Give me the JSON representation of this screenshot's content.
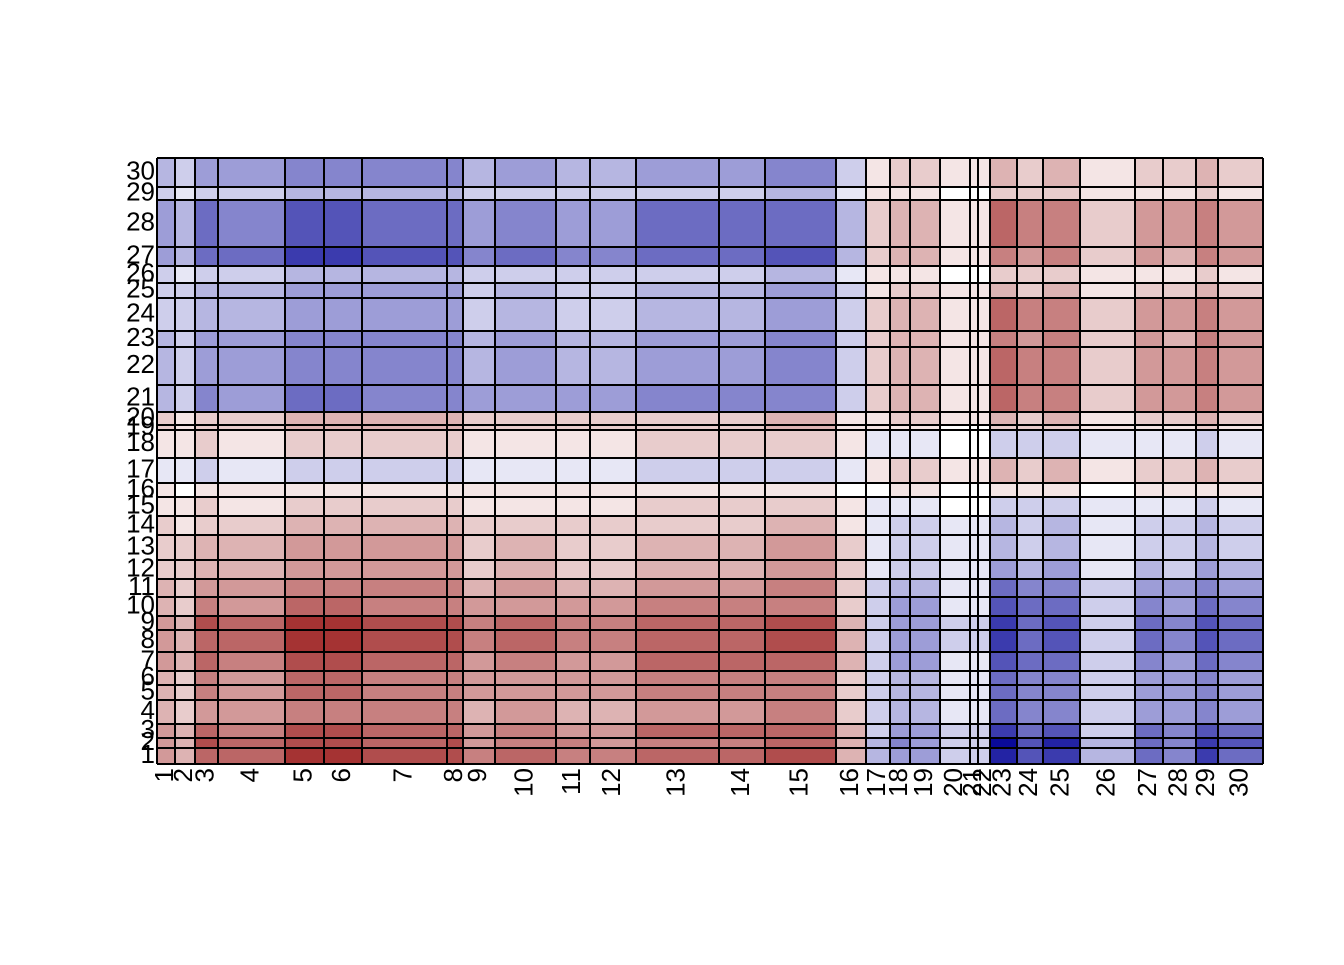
{
  "chart_data": {
    "type": "heatmap",
    "x_categories": [
      "1",
      "2",
      "3",
      "4",
      "5",
      "6",
      "7",
      "8",
      "9",
      "10",
      "11",
      "12",
      "13",
      "14",
      "15",
      "16",
      "17",
      "18",
      "19",
      "20",
      "21",
      "22",
      "23",
      "24",
      "25",
      "26",
      "27",
      "28",
      "29",
      "30"
    ],
    "y_categories": [
      "1",
      "2",
      "3",
      "4",
      "5",
      "6",
      "7",
      "8",
      "9",
      "10",
      "11",
      "12",
      "13",
      "14",
      "15",
      "16",
      "17",
      "18",
      "19",
      "20",
      "21",
      "22",
      "23",
      "24",
      "25",
      "26",
      "27",
      "28",
      "29",
      "30"
    ],
    "xbreaks": [
      0,
      18,
      38,
      61,
      128,
      167,
      205,
      290,
      306,
      338,
      399,
      433,
      479,
      562,
      608,
      679,
      709,
      733,
      753,
      783,
      813,
      821,
      833,
      860,
      886,
      923,
      978,
      1006,
      1039,
      1061,
      1106
    ],
    "ybreaks": [
      0,
      16,
      26,
      40,
      64,
      79,
      93,
      112,
      134,
      148,
      167,
      185,
      204,
      229,
      248,
      267,
      281,
      306,
      334,
      339,
      352,
      379,
      417,
      433,
      466,
      481,
      498,
      517,
      564,
      577,
      606
    ],
    "vlim": [
      -1,
      1
    ],
    "colorscale": [
      "#0a0a9a",
      "#ffffff",
      "#8e0000"
    ],
    "values": [
      [
        0.4,
        0.3,
        0.6,
        0.6,
        0.8,
        0.8,
        0.7,
        0.7,
        0.5,
        0.6,
        0.5,
        0.5,
        0.6,
        0.6,
        0.7,
        0.3,
        -0.3,
        -0.4,
        -0.4,
        -0.2,
        -0.2,
        -0.2,
        -0.9,
        -0.7,
        -0.8,
        -0.3,
        -0.6,
        -0.5,
        -0.8,
        -0.6
      ],
      [
        0.4,
        0.3,
        0.7,
        0.6,
        0.7,
        0.7,
        0.6,
        0.7,
        0.4,
        0.5,
        0.5,
        0.4,
        0.5,
        0.5,
        0.6,
        0.3,
        -0.3,
        -0.5,
        -0.4,
        -0.2,
        -0.2,
        -0.2,
        -1,
        -0.7,
        -0.9,
        -0.3,
        -0.6,
        -0.5,
        -0.8,
        -0.7
      ],
      [
        0.4,
        0.3,
        0.6,
        0.5,
        0.7,
        0.7,
        0.6,
        0.6,
        0.4,
        0.5,
        0.4,
        0.4,
        0.6,
        0.6,
        0.6,
        0.3,
        -0.2,
        -0.4,
        -0.4,
        -0.2,
        -0.2,
        -0.2,
        -0.8,
        -0.6,
        -0.7,
        -0.2,
        -0.6,
        -0.5,
        -0.7,
        -0.6
      ],
      [
        0.3,
        0.2,
        0.4,
        0.4,
        0.5,
        0.5,
        0.5,
        0.5,
        0.3,
        0.4,
        0.3,
        0.3,
        0.4,
        0.4,
        0.5,
        0.2,
        -0.2,
        -0.3,
        -0.3,
        -0.1,
        -0.1,
        -0.1,
        -0.6,
        -0.5,
        -0.5,
        -0.2,
        -0.4,
        -0.4,
        -0.5,
        -0.4
      ],
      [
        0.3,
        0.2,
        0.5,
        0.4,
        0.6,
        0.6,
        0.5,
        0.5,
        0.4,
        0.4,
        0.4,
        0.4,
        0.5,
        0.5,
        0.5,
        0.2,
        -0.2,
        -0.3,
        -0.3,
        -0.1,
        -0.1,
        -0.1,
        -0.6,
        -0.5,
        -0.5,
        -0.2,
        -0.4,
        -0.4,
        -0.5,
        -0.4
      ],
      [
        0.3,
        0.2,
        0.5,
        0.4,
        0.6,
        0.6,
        0.5,
        0.5,
        0.4,
        0.4,
        0.4,
        0.4,
        0.5,
        0.5,
        0.5,
        0.2,
        -0.2,
        -0.3,
        -0.3,
        -0.1,
        -0.1,
        -0.1,
        -0.6,
        -0.5,
        -0.5,
        -0.2,
        -0.4,
        -0.4,
        -0.5,
        -0.4
      ],
      [
        0.4,
        0.3,
        0.6,
        0.5,
        0.7,
        0.7,
        0.6,
        0.6,
        0.4,
        0.5,
        0.4,
        0.4,
        0.6,
        0.6,
        0.6,
        0.3,
        -0.2,
        -0.4,
        -0.4,
        -0.1,
        -0.1,
        -0.1,
        -0.7,
        -0.6,
        -0.6,
        -0.2,
        -0.5,
        -0.4,
        -0.6,
        -0.5
      ],
      [
        0.4,
        0.3,
        0.6,
        0.6,
        0.8,
        0.8,
        0.7,
        0.7,
        0.5,
        0.6,
        0.5,
        0.5,
        0.6,
        0.6,
        0.7,
        0.3,
        -0.2,
        -0.4,
        -0.4,
        -0.2,
        -0.2,
        -0.2,
        -0.8,
        -0.6,
        -0.7,
        -0.2,
        -0.6,
        -0.5,
        -0.7,
        -0.6
      ],
      [
        0.4,
        0.3,
        0.7,
        0.6,
        0.8,
        0.8,
        0.7,
        0.7,
        0.5,
        0.6,
        0.5,
        0.5,
        0.6,
        0.6,
        0.7,
        0.3,
        -0.2,
        -0.4,
        -0.4,
        -0.2,
        -0.2,
        -0.2,
        -0.8,
        -0.6,
        -0.7,
        -0.2,
        -0.6,
        -0.5,
        -0.7,
        -0.6
      ],
      [
        0.3,
        0.2,
        0.5,
        0.4,
        0.6,
        0.6,
        0.5,
        0.5,
        0.4,
        0.4,
        0.4,
        0.4,
        0.5,
        0.5,
        0.5,
        0.2,
        -0.2,
        -0.4,
        -0.4,
        -0.1,
        -0.1,
        -0.1,
        -0.7,
        -0.6,
        -0.6,
        -0.2,
        -0.5,
        -0.4,
        -0.6,
        -0.5
      ],
      [
        0.3,
        0.2,
        0.4,
        0.4,
        0.5,
        0.5,
        0.5,
        0.5,
        0.3,
        0.4,
        0.3,
        0.3,
        0.4,
        0.4,
        0.5,
        0.2,
        -0.2,
        -0.3,
        -0.3,
        -0.1,
        -0.1,
        -0.1,
        -0.6,
        -0.5,
        -0.5,
        -0.2,
        -0.4,
        -0.4,
        -0.5,
        -0.4
      ],
      [
        0.2,
        0.2,
        0.3,
        0.3,
        0.4,
        0.4,
        0.4,
        0.4,
        0.2,
        0.3,
        0.2,
        0.2,
        0.3,
        0.3,
        0.4,
        0.2,
        -0.1,
        -0.2,
        -0.2,
        -0.1,
        -0.1,
        -0.1,
        -0.4,
        -0.3,
        -0.4,
        -0.1,
        -0.3,
        -0.2,
        -0.4,
        -0.3
      ],
      [
        0.2,
        0.2,
        0.3,
        0.3,
        0.4,
        0.4,
        0.4,
        0.4,
        0.2,
        0.3,
        0.2,
        0.2,
        0.3,
        0.3,
        0.4,
        0.2,
        -0.1,
        -0.2,
        -0.2,
        -0.1,
        -0.1,
        -0.1,
        -0.3,
        -0.2,
        -0.3,
        -0.1,
        -0.2,
        -0.2,
        -0.3,
        -0.2
      ],
      [
        0.2,
        0.1,
        0.2,
        0.2,
        0.3,
        0.3,
        0.3,
        0.3,
        0.2,
        0.2,
        0.2,
        0.2,
        0.2,
        0.2,
        0.3,
        0.1,
        -0.1,
        -0.2,
        -0.2,
        -0.1,
        -0.1,
        -0.1,
        -0.3,
        -0.2,
        -0.3,
        -0.1,
        -0.2,
        -0.2,
        -0.3,
        -0.2
      ],
      [
        0.1,
        0.1,
        0.2,
        0.1,
        0.2,
        0.2,
        0.2,
        0.2,
        0.1,
        0.1,
        0.1,
        0.1,
        0.2,
        0.2,
        0.2,
        0.1,
        -0.1,
        -0.1,
        -0.1,
        0,
        0,
        0,
        -0.2,
        -0.2,
        -0.2,
        -0.1,
        -0.1,
        -0.1,
        -0.2,
        -0.1
      ],
      [
        0.1,
        0,
        0.1,
        0.1,
        0.1,
        0.1,
        0.1,
        0.1,
        0.1,
        0.1,
        0.1,
        0.1,
        0.1,
        0.1,
        0.1,
        0,
        0,
        0.1,
        0.1,
        0,
        0,
        0,
        0.1,
        0.1,
        0.1,
        0,
        0.1,
        0.1,
        0.1,
        0.1
      ],
      [
        -0.1,
        -0.1,
        -0.2,
        -0.1,
        -0.2,
        -0.2,
        -0.2,
        -0.2,
        -0.1,
        -0.1,
        -0.1,
        -0.1,
        -0.2,
        -0.2,
        -0.2,
        -0.1,
        0.1,
        0.2,
        0.2,
        0.1,
        0.1,
        0.1,
        0.3,
        0.2,
        0.3,
        0.1,
        0.2,
        0.2,
        0.3,
        0.2
      ],
      [
        0.1,
        0.1,
        0.2,
        0.1,
        0.2,
        0.2,
        0.2,
        0.2,
        0.1,
        0.1,
        0.1,
        0.1,
        0.2,
        0.2,
        0.2,
        0.1,
        -0.1,
        -0.1,
        -0.1,
        0,
        0,
        0,
        -0.2,
        -0.2,
        -0.2,
        -0.1,
        -0.1,
        -0.1,
        -0.2,
        -0.1
      ],
      [
        0.2,
        0.1,
        0.2,
        0.2,
        0.3,
        0.3,
        0.3,
        0.3,
        0.2,
        0.2,
        0.2,
        0.2,
        0.2,
        0.2,
        0.3,
        0.1,
        0.1,
        0.1,
        0.1,
        0,
        0,
        0,
        0.2,
        0.2,
        0.2,
        0.1,
        0.1,
        0.1,
        0.2,
        0.1
      ],
      [
        0.2,
        0.1,
        0.2,
        0.2,
        0.3,
        0.3,
        0.3,
        0.3,
        0.2,
        0.2,
        0.2,
        0.2,
        0.2,
        0.2,
        0.3,
        0.1,
        0.1,
        0.2,
        0.2,
        0.1,
        0.1,
        0.1,
        0.3,
        0.2,
        0.3,
        0.1,
        0.2,
        0.2,
        0.3,
        0.2
      ],
      [
        -0.3,
        -0.2,
        -0.5,
        -0.4,
        -0.6,
        -0.6,
        -0.5,
        -0.5,
        -0.4,
        -0.4,
        -0.4,
        -0.4,
        -0.5,
        -0.5,
        -0.5,
        -0.2,
        0.2,
        0.3,
        0.3,
        0.1,
        0.1,
        0.1,
        0.6,
        0.5,
        0.5,
        0.2,
        0.4,
        0.4,
        0.5,
        0.4
      ],
      [
        -0.3,
        -0.2,
        -0.4,
        -0.4,
        -0.5,
        -0.5,
        -0.5,
        -0.5,
        -0.3,
        -0.4,
        -0.3,
        -0.3,
        -0.4,
        -0.4,
        -0.5,
        -0.2,
        0.2,
        0.3,
        0.3,
        0.1,
        0.1,
        0.1,
        0.6,
        0.5,
        0.5,
        0.2,
        0.4,
        0.4,
        0.5,
        0.4
      ],
      [
        -0.3,
        -0.2,
        -0.4,
        -0.4,
        -0.5,
        -0.5,
        -0.5,
        -0.5,
        -0.3,
        -0.4,
        -0.3,
        -0.3,
        -0.4,
        -0.4,
        -0.5,
        -0.2,
        0.2,
        0.3,
        0.3,
        0.1,
        0.1,
        0.1,
        0.5,
        0.4,
        0.5,
        0.2,
        0.4,
        0.3,
        0.5,
        0.4
      ],
      [
        -0.2,
        -0.2,
        -0.3,
        -0.3,
        -0.4,
        -0.4,
        -0.4,
        -0.4,
        -0.2,
        -0.3,
        -0.2,
        -0.2,
        -0.3,
        -0.3,
        -0.4,
        -0.2,
        0.2,
        0.3,
        0.3,
        0.1,
        0.1,
        0.1,
        0.6,
        0.5,
        0.5,
        0.2,
        0.4,
        0.4,
        0.5,
        0.4
      ],
      [
        -0.2,
        -0.2,
        -0.3,
        -0.3,
        -0.4,
        -0.4,
        -0.4,
        -0.4,
        -0.2,
        -0.3,
        -0.2,
        -0.2,
        -0.3,
        -0.3,
        -0.4,
        -0.2,
        0.1,
        0.2,
        0.2,
        0.1,
        0.1,
        0.1,
        0.3,
        0.2,
        0.3,
        0.1,
        0.2,
        0.2,
        0.3,
        0.2
      ],
      [
        -0.2,
        -0.1,
        -0.2,
        -0.2,
        -0.3,
        -0.3,
        -0.3,
        -0.3,
        -0.2,
        -0.2,
        -0.2,
        -0.2,
        -0.2,
        -0.2,
        -0.3,
        -0.1,
        0.1,
        0.1,
        0.1,
        0,
        0,
        0,
        0.2,
        0.2,
        0.2,
        0.1,
        0.1,
        0.1,
        0.2,
        0.1
      ],
      [
        -0.4,
        -0.3,
        -0.6,
        -0.6,
        -0.8,
        -0.8,
        -0.7,
        -0.7,
        -0.5,
        -0.6,
        -0.5,
        -0.5,
        -0.6,
        -0.6,
        -0.7,
        -0.3,
        0.2,
        0.3,
        0.3,
        0.1,
        0.1,
        0.1,
        0.5,
        0.4,
        0.5,
        0.2,
        0.4,
        0.3,
        0.5,
        0.4
      ],
      [
        -0.4,
        -0.3,
        -0.6,
        -0.5,
        -0.7,
        -0.7,
        -0.6,
        -0.6,
        -0.4,
        -0.5,
        -0.4,
        -0.4,
        -0.6,
        -0.6,
        -0.6,
        -0.3,
        0.2,
        0.3,
        0.3,
        0.1,
        0.1,
        0.1,
        0.6,
        0.5,
        0.5,
        0.2,
        0.4,
        0.4,
        0.5,
        0.4
      ],
      [
        -0.2,
        -0.1,
        -0.2,
        -0.2,
        -0.3,
        -0.3,
        -0.3,
        -0.3,
        -0.2,
        -0.2,
        -0.2,
        -0.2,
        -0.2,
        -0.2,
        -0.3,
        -0.1,
        0.1,
        0.1,
        0.1,
        0,
        0,
        0,
        0.2,
        0.2,
        0.2,
        0.1,
        0.1,
        0.1,
        0.2,
        0.1
      ],
      [
        -0.3,
        -0.2,
        -0.4,
        -0.4,
        -0.5,
        -0.5,
        -0.5,
        -0.5,
        -0.3,
        -0.4,
        -0.3,
        -0.3,
        -0.4,
        -0.4,
        -0.5,
        -0.2,
        0.1,
        0.2,
        0.2,
        0.1,
        0.1,
        0.1,
        0.3,
        0.2,
        0.3,
        0.1,
        0.2,
        0.2,
        0.3,
        0.2
      ]
    ]
  }
}
